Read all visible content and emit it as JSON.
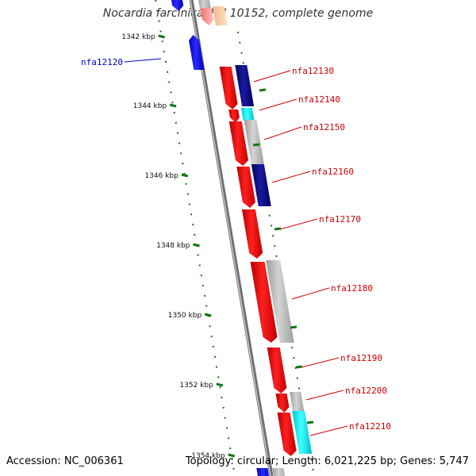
{
  "title": "Nocardia farcinica IFM 10152, complete genome",
  "footer": {
    "accession": "Accession: NC_006361",
    "summary": "Topology: circular; Length: 6,021,225 bp; Genes: 5,747"
  },
  "colors": {
    "forward_strand_gene": "#ff0000",
    "reverse_strand_gene": "#0000ff",
    "dark_blue_gene": "#000080",
    "cyan_gene": "#00ffff",
    "grey_gene": "#bbbbbb",
    "tick": "#007700",
    "backbone": "#888888",
    "label_red": "#cc0000",
    "label_blue": "#0000cc"
  },
  "scale_labels": [
    "1342 kbp",
    "1344 kbp",
    "1346 kbp",
    "1348 kbp",
    "1350 kbp",
    "1352 kbp",
    "1354 kbp"
  ],
  "genes": [
    {
      "label": "nfa12120",
      "color_role": "label_blue"
    },
    {
      "label": "nfa12130",
      "color_role": "label_red"
    },
    {
      "label": "nfa12140",
      "color_role": "label_red"
    },
    {
      "label": "nfa12150",
      "color_role": "label_red"
    },
    {
      "label": "nfa12160",
      "color_role": "label_red"
    },
    {
      "label": "nfa12170",
      "color_role": "label_red"
    },
    {
      "label": "nfa12180",
      "color_role": "label_red"
    },
    {
      "label": "nfa12190",
      "color_role": "label_red"
    },
    {
      "label": "nfa12200",
      "color_role": "label_red"
    },
    {
      "label": "nfa12210",
      "color_role": "label_red"
    }
  ]
}
